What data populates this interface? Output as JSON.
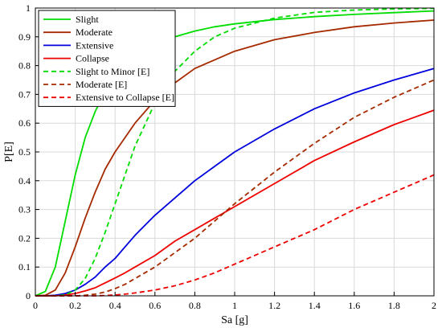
{
  "chart_data": {
    "type": "line",
    "xlabel": "Sa [g]",
    "ylabel": "P[E]",
    "xlim": [
      0,
      2
    ],
    "ylim": [
      0,
      1
    ],
    "xticks": [
      "0",
      "0.2",
      "0.4",
      "0.6",
      "0.8",
      "1",
      "1.2",
      "1.4",
      "1.6",
      "1.8",
      "2"
    ],
    "yticks": [
      "0",
      "0.1",
      "0.2",
      "0.3",
      "0.4",
      "0.5",
      "0.6",
      "0.7",
      "0.8",
      "0.9",
      "1"
    ],
    "legend_position": "top-left",
    "x": [
      0,
      0.05,
      0.1,
      0.15,
      0.2,
      0.25,
      0.3,
      0.35,
      0.4,
      0.45,
      0.5,
      0.6,
      0.7,
      0.8,
      0.9,
      1.0,
      1.2,
      1.4,
      1.6,
      1.8,
      2.0
    ],
    "series": [
      {
        "name": "Slight",
        "color": "#00dd00",
        "dash": "solid",
        "values": [
          0,
          0.015,
          0.1,
          0.26,
          0.42,
          0.55,
          0.64,
          0.71,
          0.76,
          0.8,
          0.83,
          0.87,
          0.9,
          0.92,
          0.935,
          0.945,
          0.96,
          0.97,
          0.978,
          0.984,
          0.99
        ]
      },
      {
        "name": "Moderate",
        "color": "#a52a00",
        "dash": "solid",
        "values": [
          0,
          0.002,
          0.02,
          0.08,
          0.17,
          0.27,
          0.36,
          0.44,
          0.5,
          0.55,
          0.6,
          0.68,
          0.74,
          0.79,
          0.82,
          0.85,
          0.89,
          0.915,
          0.935,
          0.948,
          0.958
        ]
      },
      {
        "name": "Extensive",
        "color": "#0000dd",
        "dash": "solid",
        "values": [
          0,
          0,
          0.002,
          0.008,
          0.02,
          0.04,
          0.065,
          0.1,
          0.13,
          0.17,
          0.21,
          0.28,
          0.34,
          0.4,
          0.45,
          0.5,
          0.58,
          0.65,
          0.705,
          0.75,
          0.79
        ]
      },
      {
        "name": "Collapse",
        "color": "#ee0000",
        "dash": "solid",
        "values": [
          0,
          0,
          0,
          0.003,
          0.008,
          0.017,
          0.028,
          0.045,
          0.062,
          0.08,
          0.1,
          0.14,
          0.19,
          0.23,
          0.27,
          0.31,
          0.39,
          0.47,
          0.535,
          0.595,
          0.645
        ]
      },
      {
        "name": "Slight to Minor [E]",
        "color": "#00dd00",
        "dash": "dashed",
        "values": [
          0,
          0,
          0,
          0.003,
          0.02,
          0.06,
          0.13,
          0.22,
          0.32,
          0.42,
          0.52,
          0.67,
          0.78,
          0.85,
          0.9,
          0.93,
          0.965,
          0.985,
          0.993,
          0.997,
          0.999
        ]
      },
      {
        "name": "Moderate [E]",
        "color": "#a52a00",
        "dash": "dashed",
        "values": [
          0,
          0,
          0,
          0,
          0,
          0.002,
          0.006,
          0.013,
          0.025,
          0.04,
          0.06,
          0.1,
          0.15,
          0.2,
          0.26,
          0.32,
          0.43,
          0.53,
          0.62,
          0.69,
          0.75
        ]
      },
      {
        "name": "Extensive to Collapse [E]",
        "color": "#ee0000",
        "dash": "dashed",
        "values": [
          0,
          0,
          0,
          0,
          0,
          0,
          0,
          0.001,
          0.003,
          0.006,
          0.01,
          0.02,
          0.035,
          0.055,
          0.08,
          0.11,
          0.17,
          0.23,
          0.3,
          0.36,
          0.42
        ]
      }
    ]
  }
}
